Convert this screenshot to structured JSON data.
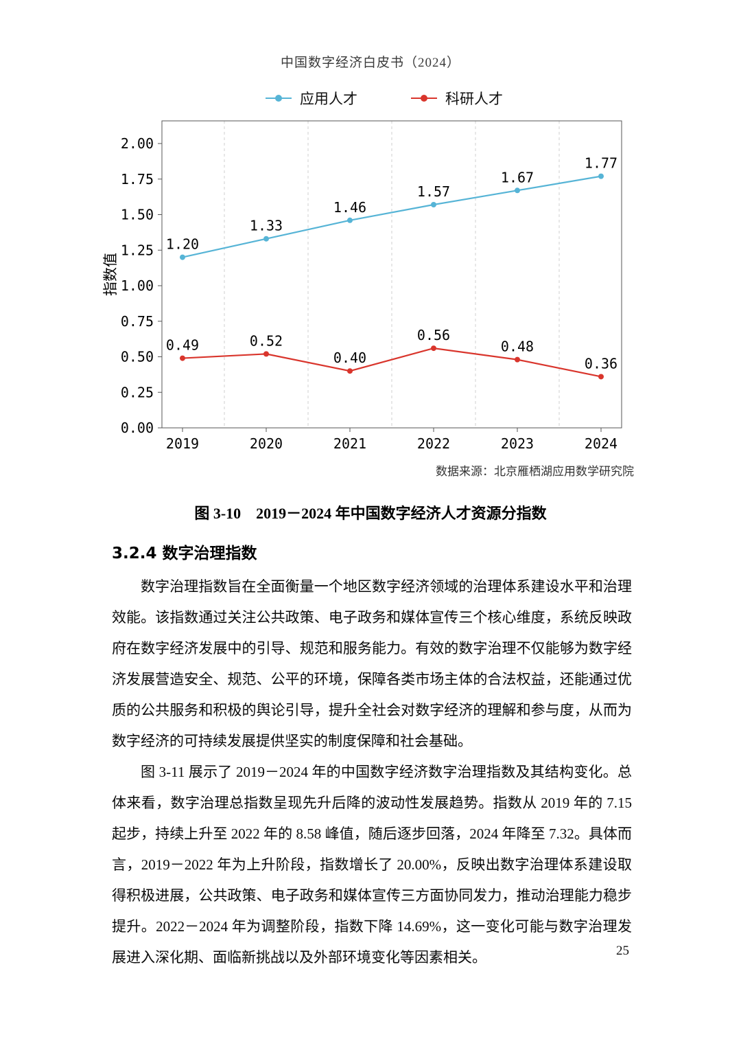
{
  "page": {
    "header": "中国数字经济白皮书（2024）",
    "page_number": "25"
  },
  "chart": {
    "source": "数据来源：北京雁栖湖应用数学研究院",
    "caption": "图 3-10　2019－2024 年中国数字经济人才资源分指数"
  },
  "chart_data": {
    "type": "line",
    "categories": [
      "2019",
      "2020",
      "2021",
      "2022",
      "2023",
      "2024"
    ],
    "series": [
      {
        "name": "应用人才",
        "color": "#56b4d6",
        "values": [
          1.2,
          1.33,
          1.46,
          1.57,
          1.67,
          1.77
        ]
      },
      {
        "name": "科研人才",
        "color": "#d9352c",
        "values": [
          0.49,
          0.52,
          0.4,
          0.56,
          0.48,
          0.36
        ]
      }
    ],
    "title": "",
    "xlabel": "",
    "ylabel": "指数值",
    "ylim": [
      0,
      2.0
    ],
    "yticks": [
      0.0,
      0.25,
      0.5,
      0.75,
      1.0,
      1.25,
      1.5,
      1.75,
      2.0
    ],
    "grid": "vertical-dashed-between-categories",
    "legend_position": "top",
    "data_labels": true
  },
  "section": {
    "heading": "3.2.4 数字治理指数",
    "paragraphs": [
      "数字治理指数旨在全面衡量一个地区数字经济领域的治理体系建设水平和治理效能。该指数通过关注公共政策、电子政务和媒体宣传三个核心维度，系统反映政府在数字经济发展中的引导、规范和服务能力。有效的数字治理不仅能够为数字经济发展营造安全、规范、公平的环境，保障各类市场主体的合法权益，还能通过优质的公共服务和积极的舆论引导，提升全社会对数字经济的理解和参与度，从而为数字经济的可持续发展提供坚实的制度保障和社会基础。",
      "图 3-11 展示了 2019－2024 年的中国数字经济数字治理指数及其结构变化。总体来看，数字治理总指数呈现先升后降的波动性发展趋势。指数从 2019 年的 7.15 起步，持续上升至 2022 年的 8.58 峰值，随后逐步回落，2024 年降至 7.32。具体而言，2019－2022 年为上升阶段，指数增长了 20.00%，反映出数字治理体系建设取得积极进展，公共政策、电子政务和媒体宣传三方面协同发力，推动治理能力稳步提升。2022－2024 年为调整阶段，指数下降 14.69%，这一变化可能与数字治理发展进入深化期、面临新挑战以及外部环境变化等因素相关。"
    ]
  }
}
